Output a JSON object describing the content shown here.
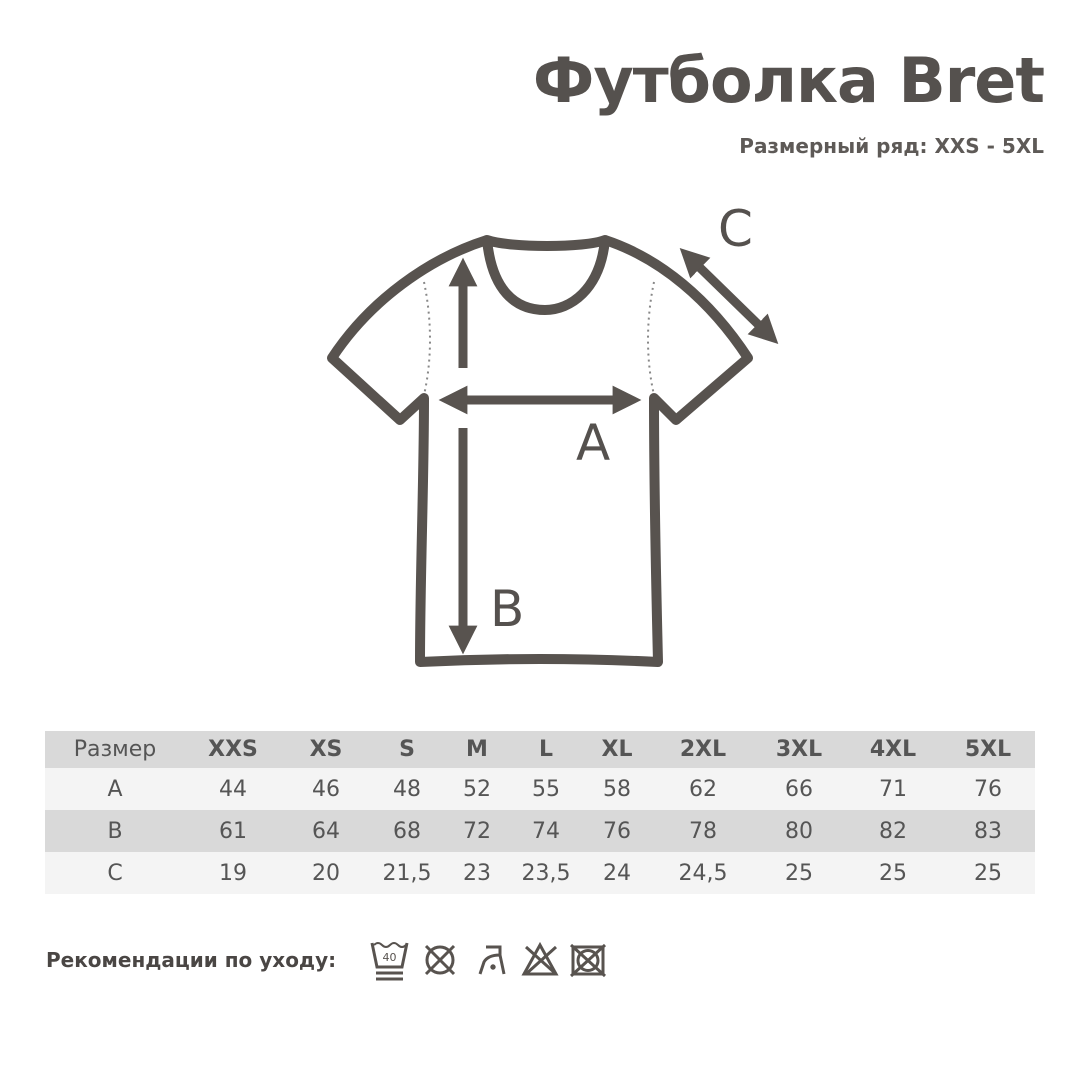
{
  "header": {
    "title": "Футболка Bret",
    "subtitle": "Размерный ряд: XXS - 5XL"
  },
  "diagram": {
    "labels": {
      "a": "A",
      "b": "B",
      "c": "C"
    },
    "line_color": "#58534f"
  },
  "table": {
    "columns": [
      "Размер",
      "XXS",
      "XS",
      "S",
      "M",
      "L",
      "XL",
      "2XL",
      "3XL",
      "4XL",
      "5XL"
    ],
    "rows": [
      [
        "A",
        "44",
        "46",
        "48",
        "52",
        "55",
        "58",
        "62",
        "66",
        "71",
        "76"
      ],
      [
        "B",
        "61",
        "64",
        "68",
        "72",
        "74",
        "76",
        "78",
        "80",
        "82",
        "83"
      ],
      [
        "C",
        "19",
        "20",
        "21,5",
        "23",
        "23,5",
        "24",
        "24,5",
        "25",
        "25",
        "25"
      ]
    ]
  },
  "care": {
    "label": "Рекомендации по уходу:",
    "wash_temp": "40",
    "icons": [
      "wash-40-icon",
      "do-not-tumble-dry-icon",
      "iron-low-icon",
      "do-not-bleach-icon",
      "do-not-dry-clean-icon"
    ]
  }
}
